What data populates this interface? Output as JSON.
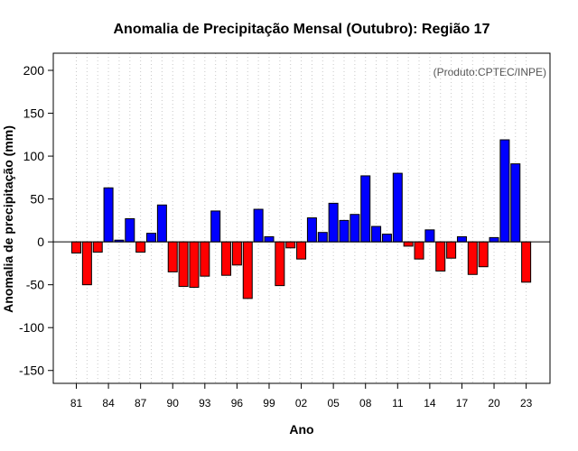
{
  "chart_data": {
    "type": "bar",
    "title": "Anomalia de Precipitação Mensal (Outubro): Região 17",
    "xlabel": "Ano",
    "ylabel": "Anomalia de precipitação (mm)",
    "credit": "(Produto:CPTEC/INPE)",
    "ylim": [
      -165,
      220
    ],
    "yticks": [
      -150,
      -100,
      -50,
      0,
      50,
      100,
      150,
      200
    ],
    "xtick_labels": [
      "81",
      "84",
      "87",
      "90",
      "93",
      "96",
      "99",
      "02",
      "05",
      "08",
      "11",
      "14",
      "17",
      "20",
      "23"
    ],
    "categories": [
      "1981",
      "1982",
      "1983",
      "1984",
      "1985",
      "1986",
      "1987",
      "1988",
      "1989",
      "1990",
      "1991",
      "1992",
      "1993",
      "1994",
      "1995",
      "1996",
      "1997",
      "1998",
      "1999",
      "2000",
      "2001",
      "2002",
      "2003",
      "2004",
      "2005",
      "2006",
      "2007",
      "2008",
      "2009",
      "2010",
      "2011",
      "2012",
      "2013",
      "2014",
      "2015",
      "2016",
      "2017",
      "2018",
      "2019",
      "2020",
      "2021",
      "2022",
      "2023"
    ],
    "values": [
      -13,
      -50,
      -12,
      63,
      2,
      27,
      -12,
      10,
      43,
      -35,
      -52,
      -53,
      -40,
      36,
      -39,
      -27,
      -66,
      38,
      6,
      -51,
      -7,
      -20,
      28,
      11,
      45,
      25,
      32,
      77,
      18,
      9,
      80,
      -5,
      -20,
      14,
      -34,
      -19,
      6,
      -38,
      -29,
      5,
      119,
      91,
      -47
    ],
    "colors": {
      "positive": "#0000FF",
      "negative": "#FF0000",
      "grid": "#c8c8c8",
      "zero_line": "#000000"
    },
    "grid": true
  }
}
